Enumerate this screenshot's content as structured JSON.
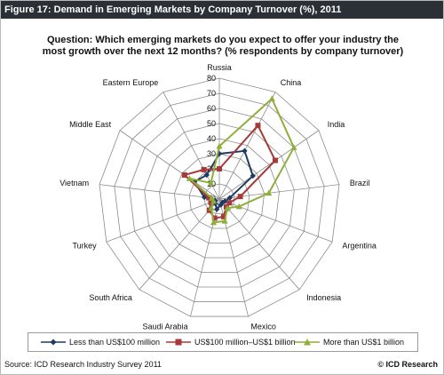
{
  "figure_title": "Figure 17: Demand in Emerging Markets by Company Turnover (%), 2011",
  "question_line1": "Question: Which emerging markets do you expect to offer your industry the",
  "question_line2": "most growth over the next 12 months? (% respondents  by company turnover)",
  "source": "Source: ICD Research Industry Survey 2011",
  "credit": "© ICD Research",
  "chart_data": {
    "type": "radar",
    "categories": [
      "Russia",
      "China",
      "India",
      "Brazil",
      "Argentina",
      "Indonesia",
      "Mexico",
      "Saudi Arabia",
      "South Africa",
      "Turkey",
      "Vietnam",
      "Middle East",
      "Eastern Europe"
    ],
    "axis_ticks": [
      0,
      10,
      20,
      30,
      40,
      50,
      60,
      70,
      80
    ],
    "rlim": [
      0,
      80
    ],
    "grid": true,
    "legend_position": "bottom",
    "series": [
      {
        "name": "Less than US$100 million",
        "color": "#1f3a63",
        "marker": "diamond",
        "values": [
          30,
          36,
          27,
          7,
          4,
          3,
          4,
          7,
          4,
          3,
          10,
          20,
          18
        ]
      },
      {
        "name": "US$100 million–US$1 billion",
        "color": "#a63a3a",
        "marker": "square",
        "values": [
          20,
          55,
          45,
          14,
          7,
          7,
          12,
          13,
          10,
          6,
          7,
          28,
          22
        ]
      },
      {
        "name": "More than US$1 billion",
        "color": "#8fae3a",
        "marker": "triangle",
        "values": [
          35,
          75,
          60,
          33,
          14,
          8,
          15,
          16,
          8,
          4,
          5,
          24,
          12
        ]
      }
    ]
  }
}
